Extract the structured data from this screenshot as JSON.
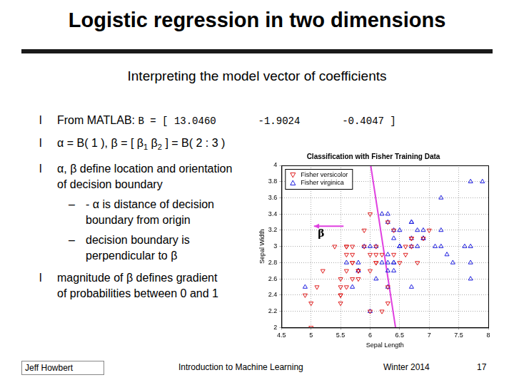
{
  "slide": {
    "title": "Logistic regression in two dimensions",
    "subtitle": "Interpreting the model vector of coefficients",
    "bullet": "l",
    "sub_bullet": "–",
    "bullets": [
      {
        "lines": [
          [
            {
              "t": "From MATLAB: "
            },
            {
              "code": "B = [ 13.0460       -1.9024       -0.4047 ]"
            }
          ]
        ]
      },
      {
        "lines": [
          [
            {
              "t": "α = B( 1 ), β = [ β"
            },
            {
              "sub": "1"
            },
            {
              "t": " β"
            },
            {
              "sub": "2"
            },
            {
              "t": " ] = B( 2 : 3 )"
            }
          ]
        ]
      },
      {
        "lines": [
          [
            {
              "t": "α, β define location and orientation"
            }
          ],
          [
            {
              "t": "of decision boundary"
            }
          ]
        ],
        "sub": [
          {
            "lines": [
              [
                {
                  "t": "- α is distance of decision"
                }
              ],
              [
                {
                  "t": "boundary from origin"
                }
              ]
            ]
          },
          {
            "lines": [
              [
                {
                  "t": "decision boundary is"
                }
              ],
              [
                {
                  "t": "perpendicular to β"
                }
              ]
            ]
          }
        ]
      },
      {
        "lines": [
          [
            {
              "t": "magnitude of β defines gradient"
            }
          ],
          [
            {
              "t": "of probabilities between 0 and 1"
            }
          ]
        ]
      }
    ],
    "footer": {
      "author": "Jeff Howbert",
      "course": "Introduction to Machine Learning",
      "term": "Winter 2014",
      "page": "17"
    }
  },
  "chart_data": {
    "type": "scatter",
    "title": "Classification with Fisher Training Data",
    "x_label": "Sepal Length",
    "y_label": "Sepal Width",
    "xlim": [
      4.5,
      8
    ],
    "xticks": [
      4.5,
      5,
      5.5,
      6,
      6.5,
      7,
      7.5,
      8
    ],
    "ylim": [
      2,
      4
    ],
    "yticks": [
      2,
      2.2,
      2.4,
      2.6,
      2.8,
      3,
      3.2,
      3.4,
      3.6,
      3.8,
      4
    ],
    "grid": true,
    "legend": "upper left",
    "series": [
      {
        "name": "Fisher versicolor",
        "color": "#e02020",
        "marker": "triangle_down",
        "x": [
          7.0,
          6.4,
          6.9,
          5.5,
          6.5,
          5.7,
          6.3,
          4.9,
          6.6,
          5.2,
          5.0,
          5.9,
          6.0,
          6.1,
          5.6,
          6.7,
          5.6,
          5.8,
          6.2,
          5.6,
          5.9,
          6.1,
          6.3,
          6.1,
          6.4,
          6.6,
          6.8,
          6.7,
          6.0,
          5.7,
          5.5,
          5.5,
          5.8,
          6.0,
          5.4,
          6.0,
          6.7,
          6.3,
          5.6,
          5.5,
          5.5,
          6.1,
          5.8,
          5.0,
          5.6,
          5.7,
          5.7,
          6.2,
          5.1,
          5.7
        ],
        "values": [
          3.2,
          3.2,
          3.1,
          2.3,
          2.8,
          2.8,
          3.3,
          2.4,
          2.9,
          2.7,
          2.0,
          3.0,
          2.2,
          2.9,
          2.9,
          3.1,
          3.0,
          2.7,
          2.2,
          2.5,
          3.2,
          2.8,
          2.5,
          2.8,
          2.9,
          3.0,
          2.8,
          3.0,
          2.9,
          2.6,
          2.4,
          2.4,
          2.7,
          2.7,
          3.0,
          3.4,
          3.1,
          2.3,
          3.0,
          2.5,
          2.6,
          3.0,
          2.6,
          2.3,
          2.7,
          3.0,
          2.9,
          2.9,
          2.5,
          2.8
        ]
      },
      {
        "name": "Fisher virginica",
        "color": "#2020e0",
        "marker": "triangle_up",
        "x": [
          6.3,
          5.8,
          7.1,
          6.3,
          6.5,
          7.6,
          4.9,
          7.3,
          6.7,
          7.2,
          6.5,
          6.4,
          6.8,
          5.7,
          5.8,
          6.4,
          6.5,
          7.7,
          7.7,
          6.0,
          6.9,
          5.6,
          7.7,
          6.3,
          6.7,
          7.2,
          6.2,
          6.1,
          6.4,
          7.2,
          7.4,
          7.9,
          6.4,
          6.3,
          6.1,
          7.7,
          6.3,
          6.4,
          6.0,
          6.9,
          6.7,
          6.9,
          5.8,
          6.8,
          6.7,
          6.7,
          6.3,
          6.5,
          6.2,
          5.9
        ],
        "values": [
          3.3,
          2.7,
          3.0,
          2.9,
          3.0,
          3.0,
          2.5,
          2.9,
          2.5,
          3.6,
          3.2,
          2.7,
          3.0,
          2.5,
          2.8,
          3.2,
          3.0,
          3.8,
          2.6,
          2.2,
          3.2,
          2.8,
          2.8,
          2.7,
          3.3,
          3.2,
          2.8,
          3.0,
          2.8,
          3.0,
          2.8,
          3.8,
          2.8,
          2.8,
          2.6,
          3.0,
          3.4,
          3.1,
          3.0,
          3.1,
          3.1,
          3.1,
          2.7,
          3.2,
          3.3,
          3.0,
          2.5,
          3.0,
          3.4,
          3.0
        ]
      },
      {
        "type": "line",
        "color": "#e040e0",
        "line_style": "solid",
        "x": [
          6.01,
          6.43
        ],
        "values": [
          4,
          2
        ]
      }
    ],
    "annotations": [
      {
        "text": "β",
        "color": "#e040e0",
        "x": [
          5.55,
          5.05
        ],
        "y": [
          3.25,
          3.25
        ]
      }
    ]
  }
}
